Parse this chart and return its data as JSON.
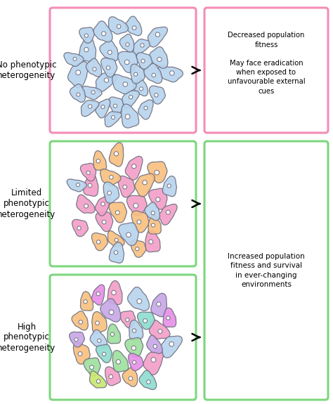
{
  "panel1_label": "No phenotypic\nheterogeneity",
  "panel2_label": "Limited\nphenotypic\nheterogeneity",
  "panel3_label": "High\nphenotypic\nheterogeneity",
  "arrow1_text": "Decreased population\nfitness\n\nMay face eradication\nwhen exposed to\nunfavourable external\ncues",
  "arrow2_text": "Increased population\nfitness and survival\nin ever-changing\nenvironments",
  "panel1_box_color": "#f48cb6",
  "panel23_box_color": "#7ed67e",
  "bg_color": "#ffffff",
  "cell_blue": "#b8d4ee",
  "cell_pink": "#f4a0c8",
  "cell_orange": "#f8c080",
  "cell_green": "#a0e0a0",
  "cell_purple": "#c8a8e8",
  "cell_teal": "#90ddd0",
  "cell_magenta": "#e890e8",
  "cell_lime": "#c8e870",
  "cell_dark_purple": "#8060c0",
  "cell_red": "#e84060",
  "cell_dark_green": "#40b840",
  "cell_yellow": "#f0e060",
  "cell_salmon": "#f0a090",
  "cell_lavender": "#c0b0f0",
  "cell_outline": "#707080"
}
